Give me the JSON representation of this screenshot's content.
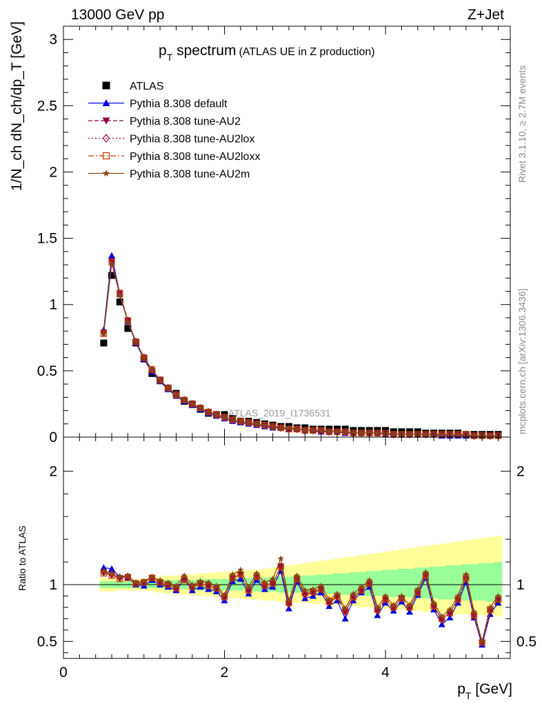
{
  "header": {
    "left": "13000 GeV pp",
    "right": "Z+Jet"
  },
  "side_text": {
    "rivet": "Rivet 3.1.10, ≥ 2.7M events",
    "mcplots": "mcplots.cern.ch [arXiv:1306.3436]"
  },
  "chart_data": [
    {
      "type": "scatter",
      "panel": "main",
      "title": "p_T spectrum",
      "title_main": "p",
      "title_sub": "T",
      "title_rest": " spectrum",
      "subtitle": "(ATLAS UE in Z production)",
      "watermark": "ATLAS_2019_I1736531",
      "ylabel": "1/N_ch dN_ch/dp_T [GeV]",
      "xlim": [
        0,
        5.55
      ],
      "ylim": [
        0,
        3.1
      ],
      "yticks": [
        {
          "v": 0,
          "label": "0"
        },
        {
          "v": 0.5,
          "label": "0.5"
        },
        {
          "v": 1,
          "label": "1"
        },
        {
          "v": 1.5,
          "label": "1.5"
        },
        {
          "v": 2,
          "label": "2"
        },
        {
          "v": 2.5,
          "label": "2.5"
        },
        {
          "v": 3,
          "label": "3"
        }
      ],
      "legend_position": "top-left",
      "x": [
        0.5,
        0.6,
        0.7,
        0.8,
        0.9,
        1.0,
        1.1,
        1.2,
        1.3,
        1.4,
        1.5,
        1.6,
        1.7,
        1.8,
        1.9,
        2.0,
        2.1,
        2.2,
        2.3,
        2.4,
        2.5,
        2.6,
        2.7,
        2.8,
        2.9,
        3.0,
        3.1,
        3.2,
        3.3,
        3.4,
        3.5,
        3.6,
        3.7,
        3.8,
        3.9,
        4.0,
        4.1,
        4.2,
        4.3,
        4.4,
        4.5,
        4.6,
        4.7,
        4.8,
        4.9,
        5.0,
        5.1,
        5.2,
        5.3,
        5.4
      ],
      "series": [
        {
          "name": "ATLAS",
          "color": "#000000",
          "marker": "square-filled",
          "line": "none",
          "values": [
            0.71,
            1.22,
            1.02,
            0.82,
            0.71,
            0.59,
            0.48,
            0.43,
            0.37,
            0.33,
            0.27,
            0.25,
            0.21,
            0.18,
            0.17,
            0.17,
            0.14,
            0.12,
            0.12,
            0.11,
            0.1,
            0.09,
            0.08,
            0.08,
            0.07,
            0.07,
            0.06,
            0.06,
            0.06,
            0.06,
            0.06,
            0.05,
            0.05,
            0.05,
            0.05,
            0.05,
            0.04,
            0.04,
            0.04,
            0.04,
            0.03,
            0.03,
            0.03,
            0.03,
            0.03,
            0.02,
            0.02,
            0.02,
            0.02,
            0.02
          ]
        },
        {
          "name": "Pythia 8.308 default",
          "color": "#0000e0",
          "marker": "triangle-up-filled",
          "line": "solid",
          "values": [
            0.81,
            1.37,
            1.08,
            0.87,
            0.71,
            0.59,
            0.49,
            0.42,
            0.36,
            0.31,
            0.27,
            0.24,
            0.21,
            0.18,
            0.16,
            0.14,
            0.12,
            0.11,
            0.1,
            0.09,
            0.08,
            0.07,
            0.07,
            0.06,
            0.06,
            0.05,
            0.05,
            0.04,
            0.04,
            0.04,
            0.03,
            0.03,
            0.03,
            0.03,
            0.03,
            0.02,
            0.02,
            0.02,
            0.02,
            0.02,
            0.02,
            0.02,
            0.01,
            0.01,
            0.01,
            0.01,
            0.01,
            0.01,
            0.01,
            0.01
          ]
        },
        {
          "name": "Pythia 8.308 tune-AU2",
          "color": "#8b0040",
          "marker": "triangle-down-filled",
          "line": "dashed",
          "values": [
            0.79,
            1.33,
            1.09,
            0.88,
            0.72,
            0.6,
            0.5,
            0.43,
            0.37,
            0.32,
            0.28,
            0.25,
            0.22,
            0.19,
            0.17,
            0.15,
            0.13,
            0.12,
            0.11,
            0.1,
            0.09,
            0.08,
            0.07,
            0.06,
            0.06,
            0.05,
            0.05,
            0.05,
            0.04,
            0.04,
            0.04,
            0.03,
            0.03,
            0.03,
            0.03,
            0.03,
            0.02,
            0.02,
            0.02,
            0.02,
            0.02,
            0.02,
            0.02,
            0.02,
            0.02,
            0.02,
            0.01,
            0.01,
            0.01,
            0.01
          ]
        },
        {
          "name": "Pythia 8.308 tune-AU2lox",
          "color": "#a00050",
          "marker": "diamond-open",
          "line": "dotted",
          "values": [
            0.79,
            1.32,
            1.08,
            0.88,
            0.72,
            0.6,
            0.51,
            0.43,
            0.37,
            0.32,
            0.28,
            0.25,
            0.22,
            0.19,
            0.17,
            0.15,
            0.13,
            0.12,
            0.11,
            0.1,
            0.09,
            0.08,
            0.07,
            0.06,
            0.06,
            0.05,
            0.05,
            0.05,
            0.04,
            0.04,
            0.04,
            0.03,
            0.03,
            0.03,
            0.03,
            0.03,
            0.02,
            0.02,
            0.02,
            0.02,
            0.02,
            0.02,
            0.02,
            0.02,
            0.02,
            0.02,
            0.01,
            0.01,
            0.01,
            0.01
          ]
        },
        {
          "name": "Pythia 8.308 tune-AU2loxx",
          "color": "#c04000",
          "marker": "square-open",
          "line": "dashdot",
          "values": [
            0.78,
            1.32,
            1.08,
            0.88,
            0.72,
            0.6,
            0.51,
            0.43,
            0.37,
            0.32,
            0.28,
            0.25,
            0.22,
            0.19,
            0.17,
            0.15,
            0.13,
            0.12,
            0.11,
            0.1,
            0.09,
            0.08,
            0.07,
            0.06,
            0.06,
            0.05,
            0.05,
            0.05,
            0.04,
            0.04,
            0.04,
            0.03,
            0.03,
            0.03,
            0.03,
            0.03,
            0.02,
            0.02,
            0.02,
            0.02,
            0.02,
            0.02,
            0.02,
            0.02,
            0.02,
            0.02,
            0.01,
            0.01,
            0.01,
            0.01
          ]
        },
        {
          "name": "Pythia 8.308 tune-AU2m",
          "color": "#8b4513",
          "marker": "star-filled",
          "line": "solid",
          "values": [
            0.78,
            1.31,
            1.07,
            0.87,
            0.72,
            0.6,
            0.51,
            0.43,
            0.37,
            0.32,
            0.28,
            0.25,
            0.22,
            0.19,
            0.17,
            0.15,
            0.13,
            0.12,
            0.11,
            0.1,
            0.09,
            0.08,
            0.07,
            0.07,
            0.06,
            0.05,
            0.05,
            0.05,
            0.04,
            0.04,
            0.04,
            0.03,
            0.03,
            0.03,
            0.03,
            0.03,
            0.02,
            0.02,
            0.02,
            0.02,
            0.02,
            0.02,
            0.02,
            0.02,
            0.02,
            0.02,
            0.01,
            0.01,
            0.01,
            0.01
          ]
        }
      ]
    },
    {
      "type": "line",
      "panel": "ratio",
      "xlabel": "p_T [GeV]",
      "xlabel_main": "p",
      "xlabel_sub": "T",
      "xlabel_rest": " [GeV]",
      "ylabel": "Ratio to ATLAS",
      "xlim": [
        0,
        5.55
      ],
      "ylim": [
        0.35,
        2.3
      ],
      "xticks": [
        {
          "v": 0,
          "label": "0"
        },
        {
          "v": 2,
          "label": "2"
        },
        {
          "v": 4,
          "label": "4"
        }
      ],
      "yticks": [
        {
          "v": 0.5,
          "label": "0.5"
        },
        {
          "v": 1,
          "label": "1"
        },
        {
          "v": 2,
          "label": "2"
        }
      ],
      "band_yellow_lo": [
        0.94,
        0.94,
        0.95,
        0.95,
        0.95,
        0.95,
        0.94,
        0.93,
        0.92,
        0.92,
        0.91,
        0.91,
        0.9,
        0.9,
        0.89,
        0.89,
        0.88,
        0.88,
        0.87,
        0.87,
        0.86,
        0.86,
        0.85,
        0.85,
        0.84,
        0.84,
        0.83,
        0.83,
        0.82,
        0.82,
        0.81,
        0.81,
        0.8,
        0.8,
        0.79,
        0.79,
        0.78,
        0.78,
        0.77,
        0.77,
        0.76,
        0.76,
        0.75,
        0.75,
        0.74,
        0.74,
        0.73,
        0.73,
        0.72,
        0.72
      ],
      "band_yellow_hi": [
        1.06,
        1.06,
        1.05,
        1.05,
        1.05,
        1.05,
        1.06,
        1.07,
        1.08,
        1.08,
        1.09,
        1.09,
        1.1,
        1.1,
        1.11,
        1.11,
        1.12,
        1.12,
        1.13,
        1.13,
        1.14,
        1.15,
        1.16,
        1.17,
        1.18,
        1.19,
        1.2,
        1.21,
        1.22,
        1.23,
        1.24,
        1.25,
        1.26,
        1.27,
        1.28,
        1.29,
        1.3,
        1.31,
        1.32,
        1.33,
        1.34,
        1.35,
        1.36,
        1.37,
        1.38,
        1.39,
        1.4,
        1.41,
        1.42,
        1.43
      ],
      "band_green_lo": [
        0.97,
        0.97,
        0.97,
        0.97,
        0.97,
        0.97,
        0.97,
        0.97,
        0.96,
        0.96,
        0.96,
        0.96,
        0.95,
        0.95,
        0.95,
        0.95,
        0.95,
        0.95,
        0.94,
        0.94,
        0.94,
        0.94,
        0.93,
        0.93,
        0.93,
        0.93,
        0.92,
        0.92,
        0.92,
        0.92,
        0.91,
        0.91,
        0.91,
        0.9,
        0.9,
        0.9,
        0.89,
        0.89,
        0.89,
        0.88,
        0.88,
        0.88,
        0.87,
        0.87,
        0.87,
        0.86,
        0.86,
        0.86,
        0.85,
        0.85
      ],
      "band_green_hi": [
        1.03,
        1.03,
        1.03,
        1.03,
        1.03,
        1.03,
        1.03,
        1.03,
        1.04,
        1.04,
        1.04,
        1.04,
        1.05,
        1.05,
        1.05,
        1.05,
        1.05,
        1.06,
        1.06,
        1.06,
        1.06,
        1.07,
        1.07,
        1.07,
        1.08,
        1.08,
        1.08,
        1.09,
        1.09,
        1.1,
        1.1,
        1.11,
        1.11,
        1.12,
        1.12,
        1.13,
        1.13,
        1.14,
        1.14,
        1.15,
        1.15,
        1.16,
        1.16,
        1.17,
        1.17,
        1.18,
        1.18,
        1.19,
        1.19,
        1.2
      ],
      "series": [
        {
          "name": "Pythia 8.308 default",
          "color": "#0000e0",
          "marker": "triangle-up-filled",
          "line": "solid",
          "values": [
            1.15,
            1.14,
            1.07,
            1.06,
            1.0,
            0.99,
            1.04,
            1.0,
            0.98,
            0.95,
            1.05,
            0.95,
            0.98,
            0.96,
            0.94,
            0.86,
            1.03,
            1.05,
            0.92,
            1.04,
            0.96,
            0.98,
            1.12,
            0.79,
            1.03,
            0.88,
            0.9,
            0.93,
            0.81,
            0.86,
            0.7,
            0.86,
            0.93,
            0.98,
            0.73,
            0.84,
            0.77,
            0.85,
            0.76,
            0.91,
            1.06,
            0.78,
            0.65,
            0.71,
            0.84,
            1.02,
            0.71,
            0.47,
            0.74,
            0.84
          ]
        },
        {
          "name": "Pythia 8.308 tune-AU2",
          "color": "#8b0040",
          "marker": "triangle-down-filled",
          "line": "dashed",
          "values": [
            1.11,
            1.09,
            1.06,
            1.07,
            1.01,
            1.02,
            1.06,
            1.02,
            1.0,
            0.97,
            1.05,
            0.98,
            1.01,
            0.99,
            0.97,
            0.89,
            1.06,
            1.09,
            0.95,
            1.07,
            0.99,
            1.01,
            1.16,
            0.83,
            1.05,
            0.91,
            0.93,
            0.96,
            0.84,
            0.89,
            0.76,
            0.89,
            0.95,
            1.01,
            0.77,
            0.87,
            0.8,
            0.88,
            0.8,
            0.93,
            1.08,
            0.81,
            0.69,
            0.75,
            0.87,
            1.05,
            0.73,
            0.49,
            0.77,
            0.87
          ]
        },
        {
          "name": "Pythia 8.308 tune-AU2lox",
          "color": "#a00050",
          "marker": "diamond-open",
          "line": "dotted",
          "values": [
            1.11,
            1.09,
            1.06,
            1.07,
            1.01,
            1.02,
            1.06,
            1.02,
            1.0,
            0.97,
            1.05,
            0.98,
            1.01,
            0.99,
            0.97,
            0.89,
            1.06,
            1.09,
            0.95,
            1.07,
            0.99,
            1.01,
            1.16,
            0.83,
            1.05,
            0.91,
            0.93,
            0.96,
            0.84,
            0.89,
            0.76,
            0.89,
            0.95,
            1.01,
            0.77,
            0.87,
            0.8,
            0.88,
            0.8,
            0.93,
            1.08,
            0.81,
            0.69,
            0.75,
            0.87,
            1.05,
            0.73,
            0.49,
            0.77,
            0.87
          ]
        },
        {
          "name": "Pythia 8.308 tune-AU2loxx",
          "color": "#c04000",
          "marker": "square-open",
          "line": "dashdot",
          "values": [
            1.1,
            1.08,
            1.05,
            1.06,
            1.01,
            1.02,
            1.06,
            1.02,
            1.0,
            0.97,
            1.04,
            0.98,
            1.01,
            0.99,
            0.97,
            0.89,
            1.06,
            1.09,
            0.95,
            1.07,
            0.99,
            1.01,
            1.16,
            0.84,
            1.05,
            0.93,
            0.94,
            0.96,
            0.85,
            0.9,
            0.77,
            0.89,
            0.95,
            1.01,
            0.78,
            0.87,
            0.8,
            0.88,
            0.8,
            0.93,
            1.08,
            0.81,
            0.7,
            0.75,
            0.87,
            1.06,
            0.73,
            0.49,
            0.78,
            0.87
          ]
        },
        {
          "name": "Pythia 8.308 tune-AU2m",
          "color": "#8b4513",
          "marker": "star-filled",
          "line": "solid",
          "values": [
            1.12,
            1.1,
            1.07,
            1.08,
            1.02,
            1.03,
            1.07,
            1.04,
            1.02,
            0.99,
            1.08,
            1.0,
            1.03,
            1.02,
            0.99,
            0.91,
            1.09,
            1.13,
            0.98,
            1.1,
            1.02,
            1.05,
            1.23,
            0.86,
            1.08,
            0.95,
            0.96,
            0.99,
            0.87,
            0.92,
            0.79,
            0.92,
            0.98,
            1.04,
            0.8,
            0.9,
            0.82,
            0.9,
            0.82,
            0.96,
            1.11,
            0.84,
            0.72,
            0.78,
            0.9,
            1.09,
            0.76,
            0.5,
            0.8,
            0.9
          ]
        }
      ]
    }
  ]
}
